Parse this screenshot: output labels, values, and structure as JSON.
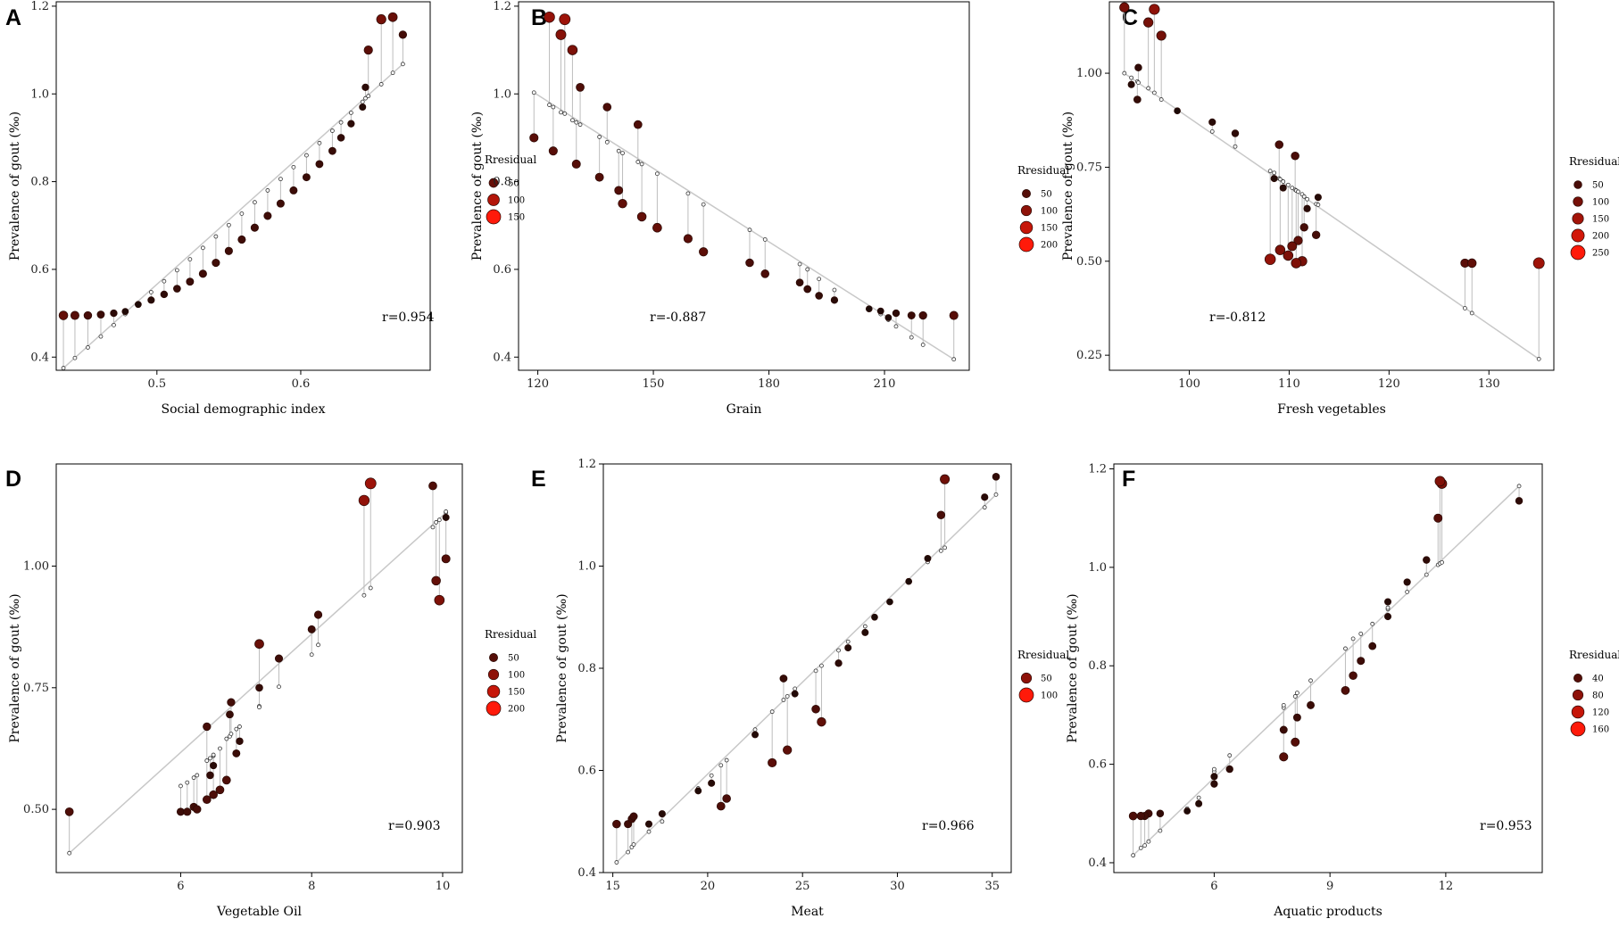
{
  "figure": {
    "colors": {
      "low": "#1c0a07",
      "high": "#ff1a0a",
      "fit_line": "#c8c8c8",
      "residual_line": "#bdbdbd",
      "frame": "#000000"
    },
    "legend_title": "Rresidual"
  },
  "chart_data": [
    {
      "panel": "A",
      "type": "scatter",
      "xlabel": "Social demographic index",
      "ylabel": "Prevalence of gout (‰)",
      "xlim": [
        0.43,
        0.69
      ],
      "ylim": [
        0.37,
        1.21
      ],
      "xticks": [
        0.5,
        0.6
      ],
      "xtick_labels": [
        "0.5",
        "0.6"
      ],
      "yticks": [
        0.4,
        0.6,
        0.8,
        1.0,
        1.2
      ],
      "ytick_labels": [
        "0.4",
        "0.6",
        "0.8",
        "1.0",
        "1.2"
      ],
      "r_label": "r=0.954",
      "legend": {
        "values": [
          50,
          100,
          150
        ],
        "labels": [
          "50",
          "100",
          "150"
        ],
        "max": 150
      },
      "points": [
        [
          0.435,
          0.495,
          0.375
        ],
        [
          0.443,
          0.495,
          0.398
        ],
        [
          0.452,
          0.495,
          0.422
        ],
        [
          0.461,
          0.497,
          0.447
        ],
        [
          0.47,
          0.5,
          0.473
        ],
        [
          0.478,
          0.504,
          0.498
        ],
        [
          0.487,
          0.52,
          0.523
        ],
        [
          0.496,
          0.53,
          0.548
        ],
        [
          0.505,
          0.543,
          0.573
        ],
        [
          0.514,
          0.556,
          0.598
        ],
        [
          0.523,
          0.572,
          0.623
        ],
        [
          0.532,
          0.59,
          0.649
        ],
        [
          0.541,
          0.615,
          0.675
        ],
        [
          0.55,
          0.642,
          0.701
        ],
        [
          0.559,
          0.668,
          0.727
        ],
        [
          0.568,
          0.695,
          0.753
        ],
        [
          0.577,
          0.722,
          0.78
        ],
        [
          0.586,
          0.75,
          0.806
        ],
        [
          0.595,
          0.78,
          0.833
        ],
        [
          0.604,
          0.81,
          0.86
        ],
        [
          0.613,
          0.84,
          0.888
        ],
        [
          0.622,
          0.87,
          0.916
        ],
        [
          0.628,
          0.9,
          0.935
        ],
        [
          0.635,
          0.932,
          0.957
        ],
        [
          0.643,
          0.97,
          0.982
        ],
        [
          0.645,
          1.015,
          0.99
        ],
        [
          0.647,
          1.1,
          0.995
        ],
        [
          0.656,
          1.17,
          1.022
        ],
        [
          0.664,
          1.175,
          1.048
        ],
        [
          0.671,
          1.135,
          1.068
        ]
      ]
    },
    {
      "panel": "B",
      "type": "scatter",
      "xlabel": "Grain",
      "ylabel": "Prevalence of gout (‰)",
      "xlim": [
        115,
        232
      ],
      "ylim": [
        0.37,
        1.21
      ],
      "xticks": [
        120,
        150,
        180,
        210
      ],
      "xtick_labels": [
        "120",
        "150",
        "180",
        "210"
      ],
      "yticks": [
        0.4,
        0.6,
        0.8,
        1.0,
        1.2
      ],
      "ytick_labels": [
        "0.4",
        "0.6",
        "0.8",
        "1.0",
        "1.2"
      ],
      "r_label": "r=-0.887",
      "legend": {
        "values": [
          50,
          100,
          150,
          200
        ],
        "labels": [
          "50",
          "100",
          "150",
          "200"
        ],
        "max": 200
      },
      "points": [
        [
          119,
          0.9,
          1.003
        ],
        [
          123,
          1.175,
          0.975
        ],
        [
          124,
          0.87,
          0.97
        ],
        [
          126,
          1.135,
          0.958
        ],
        [
          127,
          1.17,
          0.955
        ],
        [
          129,
          1.1,
          0.94
        ],
        [
          130,
          0.84,
          0.935
        ],
        [
          131,
          1.015,
          0.93
        ],
        [
          136,
          0.81,
          0.902
        ],
        [
          138,
          0.97,
          0.89
        ],
        [
          141,
          0.78,
          0.87
        ],
        [
          142,
          0.75,
          0.865
        ],
        [
          146,
          0.93,
          0.845
        ],
        [
          147,
          0.72,
          0.84
        ],
        [
          151,
          0.695,
          0.818
        ],
        [
          159,
          0.67,
          0.773
        ],
        [
          163,
          0.64,
          0.748
        ],
        [
          175,
          0.615,
          0.69
        ],
        [
          179,
          0.59,
          0.668
        ],
        [
          188,
          0.57,
          0.612
        ],
        [
          190,
          0.555,
          0.6
        ],
        [
          193,
          0.54,
          0.578
        ],
        [
          197,
          0.53,
          0.553
        ],
        [
          206,
          0.51,
          0.51
        ],
        [
          209,
          0.505,
          0.498
        ],
        [
          211,
          0.49,
          0.485
        ],
        [
          213,
          0.5,
          0.47
        ],
        [
          217,
          0.495,
          0.445
        ],
        [
          220,
          0.495,
          0.428
        ],
        [
          228,
          0.495,
          0.395
        ]
      ]
    },
    {
      "panel": "C",
      "type": "scatter",
      "xlabel": "Fresh vegetables",
      "ylabel": "Prevalence of gout (‰)",
      "xlim": [
        92,
        136.5
      ],
      "ylim": [
        0.21,
        1.19
      ],
      "xticks": [
        100,
        110,
        120,
        130
      ],
      "xtick_labels": [
        "100",
        "110",
        "120",
        "130"
      ],
      "yticks": [
        0.25,
        0.5,
        0.75,
        1.0
      ],
      "ytick_labels": [
        "0.25",
        "0.50",
        "0.75",
        "1.00"
      ],
      "r_label": "r=-0.812",
      "legend": {
        "values": [
          50,
          100,
          150,
          200,
          250
        ],
        "labels": [
          "50",
          "100",
          "150",
          "200",
          "250"
        ],
        "max": 250
      },
      "points": [
        [
          93.5,
          1.175,
          1.0
        ],
        [
          94.2,
          0.97,
          0.988
        ],
        [
          94.8,
          0.93,
          0.978
        ],
        [
          94.9,
          1.015,
          0.975
        ],
        [
          95.9,
          1.135,
          0.96
        ],
        [
          96.5,
          1.17,
          0.948
        ],
        [
          97.2,
          1.1,
          0.93
        ],
        [
          98.8,
          0.9,
          0.9
        ],
        [
          102.3,
          0.87,
          0.845
        ],
        [
          104.6,
          0.84,
          0.805
        ],
        [
          108.1,
          0.505,
          0.74
        ],
        [
          108.5,
          0.72,
          0.735
        ],
        [
          109.0,
          0.81,
          0.72
        ],
        [
          109.1,
          0.53,
          0.718
        ],
        [
          109.4,
          0.695,
          0.712
        ],
        [
          109.9,
          0.515,
          0.703
        ],
        [
          110.3,
          0.54,
          0.695
        ],
        [
          110.6,
          0.78,
          0.69
        ],
        [
          110.7,
          0.495,
          0.688
        ],
        [
          110.9,
          0.555,
          0.685
        ],
        [
          111.3,
          0.5,
          0.678
        ],
        [
          111.5,
          0.59,
          0.672
        ],
        [
          111.8,
          0.64,
          0.665
        ],
        [
          112.7,
          0.57,
          0.652
        ],
        [
          112.9,
          0.67,
          0.65
        ],
        [
          127.6,
          0.495,
          0.375
        ],
        [
          128.3,
          0.495,
          0.362
        ],
        [
          135.0,
          0.495,
          0.24
        ]
      ]
    },
    {
      "panel": "D",
      "type": "scatter",
      "xlabel": "Vegetable Oil",
      "ylabel": "Prevalence of gout (‰)",
      "xlim": [
        4.1,
        10.3
      ],
      "ylim": [
        0.37,
        1.21
      ],
      "xticks": [
        6,
        8,
        10
      ],
      "xtick_labels": [
        "6",
        "8",
        "10"
      ],
      "yticks": [
        0.5,
        0.75,
        1.0
      ],
      "ytick_labels": [
        "0.50",
        "0.75",
        "1.00"
      ],
      "r_label": "r=0.903",
      "legend": {
        "values": [
          50,
          100,
          150,
          200
        ],
        "labels": [
          "50",
          "100",
          "150",
          "200"
        ],
        "max": 200
      },
      "points": [
        [
          4.3,
          0.495,
          0.41
        ],
        [
          6.0,
          0.495,
          0.548
        ],
        [
          6.1,
          0.495,
          0.555
        ],
        [
          6.2,
          0.505,
          0.565
        ],
        [
          6.25,
          0.5,
          0.57
        ],
        [
          6.4,
          0.67,
          0.6
        ],
        [
          6.4,
          0.52,
          0.6
        ],
        [
          6.45,
          0.57,
          0.605
        ],
        [
          6.5,
          0.59,
          0.61
        ],
        [
          6.5,
          0.53,
          0.612
        ],
        [
          6.6,
          0.54,
          0.625
        ],
        [
          6.7,
          0.56,
          0.645
        ],
        [
          6.75,
          0.695,
          0.65
        ],
        [
          6.77,
          0.72,
          0.655
        ],
        [
          6.85,
          0.615,
          0.665
        ],
        [
          6.9,
          0.64,
          0.67
        ],
        [
          7.2,
          0.84,
          0.712
        ],
        [
          7.2,
          0.75,
          0.71
        ],
        [
          7.5,
          0.81,
          0.752
        ],
        [
          8.0,
          0.87,
          0.818
        ],
        [
          8.1,
          0.9,
          0.838
        ],
        [
          8.8,
          1.135,
          0.94
        ],
        [
          8.9,
          1.17,
          0.955
        ],
        [
          9.85,
          1.165,
          1.08
        ],
        [
          9.9,
          0.97,
          1.09
        ],
        [
          9.95,
          0.93,
          1.095
        ],
        [
          10.05,
          1.015,
          1.11
        ],
        [
          10.05,
          1.1,
          1.112
        ]
      ]
    },
    {
      "panel": "E",
      "type": "scatter",
      "xlabel": "Meat",
      "ylabel": "Prevalence of gout (‰)",
      "xlim": [
        14.5,
        36
      ],
      "ylim": [
        0.4,
        1.2
      ],
      "xticks": [
        15,
        20,
        25,
        30,
        35
      ],
      "xtick_labels": [
        "15",
        "20",
        "25",
        "30",
        "35"
      ],
      "yticks": [
        0.4,
        0.6,
        0.8,
        1.0,
        1.2
      ],
      "ytick_labels": [
        "0.4",
        "0.6",
        "0.8",
        "1.0",
        "1.2"
      ],
      "r_label": "r=0.966",
      "legend": {
        "values": [
          50,
          100
        ],
        "labels": [
          "50",
          "100"
        ],
        "max": 100
      },
      "points": [
        [
          15.2,
          0.495,
          0.42
        ],
        [
          15.8,
          0.495,
          0.44
        ],
        [
          16.0,
          0.505,
          0.45
        ],
        [
          16.1,
          0.51,
          0.455
        ],
        [
          16.9,
          0.495,
          0.48
        ],
        [
          17.6,
          0.515,
          0.5
        ],
        [
          19.5,
          0.56,
          0.565
        ],
        [
          20.2,
          0.575,
          0.59
        ],
        [
          20.7,
          0.53,
          0.61
        ],
        [
          21.0,
          0.545,
          0.62
        ],
        [
          22.5,
          0.67,
          0.68
        ],
        [
          23.4,
          0.615,
          0.715
        ],
        [
          24.0,
          0.78,
          0.738
        ],
        [
          24.2,
          0.64,
          0.745
        ],
        [
          24.6,
          0.75,
          0.76
        ],
        [
          25.7,
          0.72,
          0.795
        ],
        [
          26.0,
          0.695,
          0.805
        ],
        [
          26.9,
          0.81,
          0.835
        ],
        [
          27.4,
          0.84,
          0.852
        ],
        [
          28.3,
          0.87,
          0.882
        ],
        [
          28.8,
          0.9,
          0.9
        ],
        [
          29.6,
          0.93,
          0.93
        ],
        [
          30.6,
          0.97,
          0.97
        ],
        [
          31.6,
          1.015,
          1.008
        ],
        [
          32.3,
          1.1,
          1.03
        ],
        [
          32.5,
          1.17,
          1.036
        ],
        [
          34.6,
          1.135,
          1.115
        ],
        [
          35.2,
          1.175,
          1.14
        ]
      ]
    },
    {
      "panel": "F",
      "type": "scatter",
      "xlabel": "Aquatic products",
      "ylabel": "Prevalence of gout (‰)",
      "xlim": [
        3.4,
        14.5
      ],
      "ylim": [
        0.38,
        1.21
      ],
      "xticks": [
        6,
        9,
        12
      ],
      "xtick_labels": [
        "6",
        "9",
        "12"
      ],
      "yticks": [
        0.4,
        0.6,
        0.8,
        1.0,
        1.2
      ],
      "ytick_labels": [
        "0.4",
        "0.6",
        "0.8",
        "1.0",
        "1.2"
      ],
      "r_label": "r=0.953",
      "legend": {
        "values": [
          40,
          80,
          120,
          160
        ],
        "labels": [
          "40",
          "80",
          "120",
          "160"
        ],
        "max": 160
      },
      "points": [
        [
          3.9,
          0.495,
          0.415
        ],
        [
          4.1,
          0.495,
          0.43
        ],
        [
          4.2,
          0.495,
          0.435
        ],
        [
          4.3,
          0.5,
          0.443
        ],
        [
          4.6,
          0.5,
          0.465
        ],
        [
          5.3,
          0.505,
          0.51
        ],
        [
          5.6,
          0.52,
          0.532
        ],
        [
          6.0,
          0.56,
          0.585
        ],
        [
          6.0,
          0.575,
          0.59
        ],
        [
          6.4,
          0.59,
          0.618
        ],
        [
          7.8,
          0.615,
          0.715
        ],
        [
          7.8,
          0.67,
          0.72
        ],
        [
          8.1,
          0.645,
          0.738
        ],
        [
          8.15,
          0.695,
          0.745
        ],
        [
          8.5,
          0.72,
          0.77
        ],
        [
          9.4,
          0.75,
          0.835
        ],
        [
          9.6,
          0.78,
          0.855
        ],
        [
          9.8,
          0.81,
          0.865
        ],
        [
          10.1,
          0.84,
          0.885
        ],
        [
          10.5,
          0.9,
          0.915
        ],
        [
          10.5,
          0.93,
          0.918
        ],
        [
          11.0,
          0.97,
          0.95
        ],
        [
          11.5,
          1.015,
          0.985
        ],
        [
          11.8,
          1.1,
          1.005
        ],
        [
          11.85,
          1.175,
          1.008
        ],
        [
          11.9,
          1.17,
          1.01
        ],
        [
          13.9,
          1.135,
          1.165
        ]
      ]
    }
  ]
}
